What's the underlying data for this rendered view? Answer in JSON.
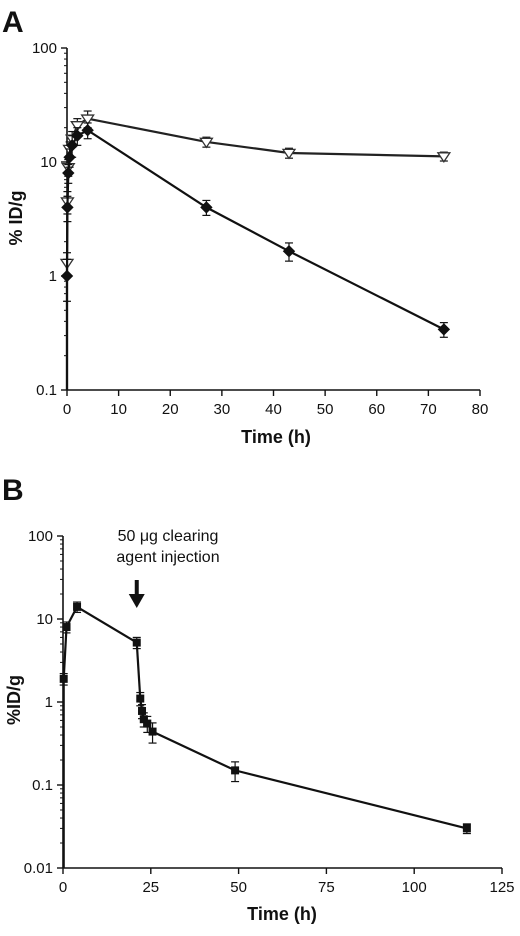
{
  "chart_data": [
    {
      "panel": "A",
      "type": "line",
      "xlabel": "Time (h)",
      "ylabel": "% ID/g",
      "xlim": [
        0,
        80
      ],
      "ylim": [
        0.1,
        100
      ],
      "yscale": "log",
      "x_ticks": [
        "0",
        "10",
        "20",
        "30",
        "40",
        "50",
        "60",
        "70",
        "80"
      ],
      "y_ticks": [
        "0.1",
        "1",
        "10",
        "100"
      ],
      "grid": false,
      "series": [
        {
          "marker": "open-triangle-down",
          "color": "#222222",
          "x": [
            0,
            0.08,
            0.25,
            0.5,
            1,
            2,
            4,
            27,
            43,
            73
          ],
          "y": [
            1.3,
            4.5,
            9,
            13,
            16,
            21,
            24,
            15,
            12,
            11.2
          ],
          "err": [
            0.3,
            1.0,
            1.5,
            2,
            2.5,
            3,
            4,
            1.5,
            1.2,
            1.0
          ]
        },
        {
          "marker": "filled-diamond",
          "color": "#111111",
          "x": [
            0,
            0.08,
            0.25,
            0.5,
            1,
            2,
            4,
            27,
            43,
            73
          ],
          "y": [
            1.0,
            4.0,
            8,
            11,
            14,
            17,
            19,
            4.0,
            1.65,
            0.34
          ],
          "err": [
            0.4,
            1.0,
            1.5,
            2,
            3,
            3,
            3,
            0.6,
            0.3,
            0.05
          ]
        }
      ]
    },
    {
      "panel": "B",
      "type": "line",
      "xlabel": "Time (h)",
      "ylabel": "%ID/g",
      "xlim": [
        0,
        125
      ],
      "ylim": [
        0.01,
        100
      ],
      "yscale": "log",
      "x_ticks": [
        "0",
        "25",
        "50",
        "75",
        "100",
        "125"
      ],
      "y_ticks": [
        "0.01",
        "0.1",
        "1",
        "10",
        "100"
      ],
      "grid": false,
      "annotation": {
        "line1": "50 μg clearing",
        "line2": "agent injection",
        "x": 21
      },
      "series": [
        {
          "marker": "filled-square",
          "color": "#111111",
          "x": [
            0.2,
            1,
            4,
            21,
            22,
            22.5,
            23,
            24,
            25.5,
            49,
            115
          ],
          "y": [
            1.9,
            8,
            14,
            5.2,
            1.1,
            0.78,
            0.62,
            0.55,
            0.44,
            0.15,
            0.03
          ],
          "err": [
            0.3,
            1.2,
            2,
            0.8,
            0.2,
            0.15,
            0.12,
            0.12,
            0.12,
            0.04,
            0.004
          ]
        }
      ]
    }
  ]
}
